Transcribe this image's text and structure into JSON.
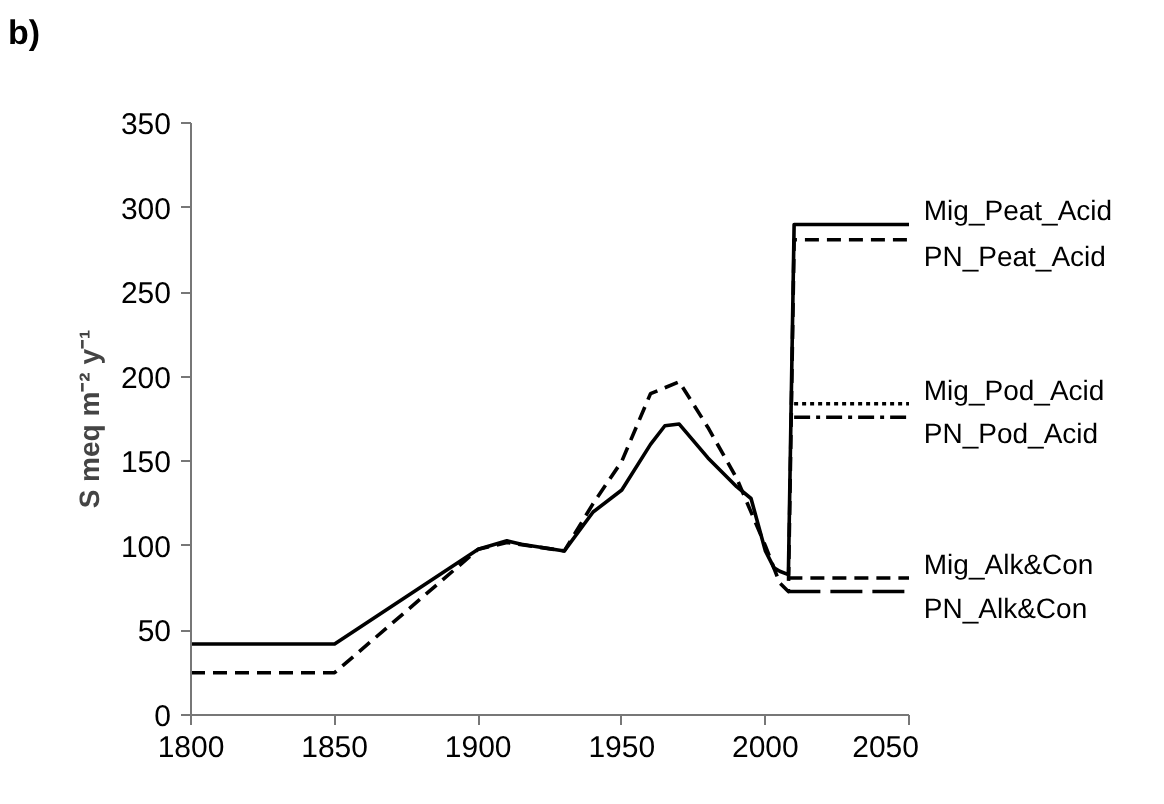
{
  "chart_data": {
    "type": "line",
    "ylabel": "S meq m⁻² y⁻¹",
    "annotations": [
      "b)"
    ],
    "xlim": [
      1800,
      2050
    ],
    "ylim": [
      0,
      350
    ],
    "xticks": [
      1800,
      1850,
      1900,
      1950,
      2000,
      2050
    ],
    "yticks": [
      0,
      50,
      100,
      150,
      200,
      250,
      300,
      350
    ],
    "grid": false,
    "marker": "none",
    "series": [
      {
        "name": "Mig_Peat_Acid",
        "color": "#000000",
        "line_style": "solid",
        "x": [
          1800,
          1850,
          1900,
          1910,
          1915,
          1930,
          1940,
          1950,
          1960,
          1965,
          1970,
          1980,
          1990,
          1995,
          2000,
          2003,
          2005,
          2008,
          2010,
          2050
        ],
        "values": [
          42,
          42,
          98,
          103,
          101,
          97,
          120,
          133,
          160,
          171,
          172,
          152,
          135,
          128,
          97,
          87,
          85,
          83,
          290,
          290
        ]
      },
      {
        "name": "PN_Peat_Acid",
        "color": "#000000",
        "line_style": "dashed",
        "x": [
          1800,
          1850,
          1900,
          1910,
          1930,
          1940,
          1950,
          1960,
          1970,
          1980,
          1990,
          2000,
          2005,
          2008,
          2010,
          2050
        ],
        "values": [
          25,
          25,
          98,
          102,
          97,
          125,
          150,
          190,
          197,
          170,
          140,
          100,
          78,
          73,
          281,
          281
        ]
      },
      {
        "name": "Mig_Pod_Acid",
        "color": "#000000",
        "line_style": "dotted",
        "x": [
          2010,
          2050
        ],
        "values": [
          184,
          184
        ]
      },
      {
        "name": "PN_Pod_Acid",
        "color": "#000000",
        "line_style": "dashdot",
        "x": [
          2010,
          2050
        ],
        "values": [
          176,
          176
        ]
      },
      {
        "name": "Mig_Alk&Con",
        "color": "#000000",
        "line_style": "dashed",
        "x": [
          2008,
          2050
        ],
        "values": [
          81,
          81
        ]
      },
      {
        "name": "PN_Alk&Con",
        "color": "#000000",
        "line_style": "longdash",
        "x": [
          2008,
          2050
        ],
        "values": [
          73,
          73
        ]
      }
    ]
  }
}
